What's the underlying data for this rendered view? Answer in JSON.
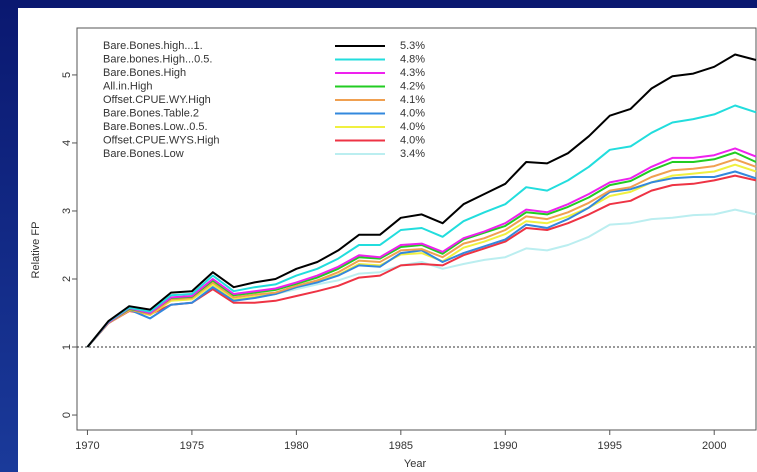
{
  "chart_data": {
    "type": "line",
    "x_label": "Year",
    "y_label": "Relative FP",
    "x": [
      1970,
      1971,
      1972,
      1973,
      1974,
      1975,
      1976,
      1977,
      1978,
      1979,
      1980,
      1981,
      1982,
      1983,
      1984,
      1985,
      1986,
      1987,
      1988,
      1989,
      1990,
      1991,
      1992,
      1993,
      1994,
      1995,
      1996,
      1997,
      1998,
      1999,
      2000,
      2001,
      2002
    ],
    "xlim": [
      1969.5,
      2002
    ],
    "xticks": [
      1970,
      1975,
      1980,
      1985,
      1990,
      1995,
      2000
    ],
    "ylim": [
      -0.22,
      5.69
    ],
    "yticks": [
      0,
      1,
      2,
      3,
      4,
      5
    ],
    "reference_line": 1,
    "series": [
      {
        "name": "Bare.Bones.high...1.",
        "legend_label": "5.3%",
        "color": "#000000",
        "values": [
          1.0,
          1.38,
          1.6,
          1.55,
          1.8,
          1.82,
          2.1,
          1.88,
          1.95,
          2.0,
          2.15,
          2.25,
          2.42,
          2.65,
          2.65,
          2.9,
          2.95,
          2.82,
          3.1,
          3.25,
          3.4,
          3.72,
          3.7,
          3.85,
          4.1,
          4.4,
          4.5,
          4.8,
          4.98,
          5.02,
          5.12,
          5.3,
          5.22
        ]
      },
      {
        "name": "Bare.bones.High...0.5.",
        "legend_label": "4.8%",
        "color": "#22dddd",
        "values": [
          1.0,
          1.37,
          1.58,
          1.52,
          1.76,
          1.78,
          2.05,
          1.82,
          1.88,
          1.92,
          2.05,
          2.15,
          2.3,
          2.5,
          2.5,
          2.72,
          2.75,
          2.62,
          2.85,
          2.98,
          3.1,
          3.35,
          3.3,
          3.45,
          3.65,
          3.9,
          3.95,
          4.15,
          4.3,
          4.35,
          4.42,
          4.55,
          4.45
        ]
      },
      {
        "name": "Bare.Bones.High",
        "legend_label": "4.3%",
        "color": "#ee22ee",
        "values": [
          1.0,
          1.36,
          1.57,
          1.5,
          1.73,
          1.75,
          2.0,
          1.78,
          1.82,
          1.86,
          1.95,
          2.05,
          2.18,
          2.35,
          2.32,
          2.5,
          2.52,
          2.4,
          2.6,
          2.7,
          2.82,
          3.02,
          2.98,
          3.1,
          3.25,
          3.42,
          3.48,
          3.65,
          3.78,
          3.78,
          3.82,
          3.92,
          3.8
        ]
      },
      {
        "name": "All.in.High",
        "legend_label": "4.2%",
        "color": "#22cc22",
        "values": [
          1.0,
          1.36,
          1.56,
          1.5,
          1.72,
          1.74,
          1.98,
          1.76,
          1.8,
          1.84,
          1.93,
          2.02,
          2.15,
          2.32,
          2.3,
          2.47,
          2.5,
          2.37,
          2.58,
          2.68,
          2.78,
          2.98,
          2.95,
          3.06,
          3.2,
          3.38,
          3.44,
          3.6,
          3.72,
          3.72,
          3.76,
          3.86,
          3.72
        ]
      },
      {
        "name": "Offset.CPUE.WY.High",
        "legend_label": "4.1%",
        "color": "#f0a050",
        "values": [
          1.0,
          1.35,
          1.55,
          1.48,
          1.7,
          1.72,
          1.95,
          1.73,
          1.77,
          1.8,
          1.9,
          1.98,
          2.1,
          2.27,
          2.25,
          2.42,
          2.44,
          2.32,
          2.52,
          2.6,
          2.72,
          2.92,
          2.88,
          2.98,
          3.12,
          3.3,
          3.35,
          3.5,
          3.6,
          3.62,
          3.66,
          3.76,
          3.65
        ]
      },
      {
        "name": "Bare.Bones.Table.2",
        "legend_label": "4.0%",
        "color": "#3388dd",
        "values": [
          1.0,
          1.35,
          1.55,
          1.42,
          1.62,
          1.65,
          1.88,
          1.68,
          1.72,
          1.78,
          1.88,
          1.95,
          2.05,
          2.2,
          2.18,
          2.38,
          2.42,
          2.25,
          2.38,
          2.48,
          2.58,
          2.8,
          2.75,
          2.88,
          3.05,
          3.28,
          3.32,
          3.42,
          3.48,
          3.5,
          3.5,
          3.58,
          3.48
        ]
      },
      {
        "name": "Bare.Bones.Low..0.5.",
        "legend_label": "4.0%",
        "color": "#f0f040",
        "values": [
          1.0,
          1.35,
          1.54,
          1.47,
          1.68,
          1.7,
          1.92,
          1.7,
          1.74,
          1.78,
          1.88,
          1.96,
          2.06,
          2.22,
          2.2,
          2.36,
          2.38,
          2.26,
          2.46,
          2.55,
          2.66,
          2.85,
          2.82,
          2.92,
          3.05,
          3.22,
          3.28,
          3.42,
          3.52,
          3.55,
          3.58,
          3.68,
          3.58
        ]
      },
      {
        "name": "Offset.CPUE.WYS.High",
        "legend_label": "4.0%",
        "color": "#ee3344",
        "values": [
          1.0,
          1.35,
          1.53,
          1.48,
          1.62,
          1.65,
          1.85,
          1.65,
          1.65,
          1.68,
          1.75,
          1.82,
          1.9,
          2.02,
          2.05,
          2.2,
          2.22,
          2.2,
          2.35,
          2.45,
          2.55,
          2.75,
          2.72,
          2.82,
          2.95,
          3.1,
          3.15,
          3.3,
          3.38,
          3.4,
          3.45,
          3.52,
          3.45
        ]
      },
      {
        "name": "Bare.Bones.Low",
        "legend_label": "3.4%",
        "color": "#bbeef0",
        "values": [
          1.0,
          1.35,
          1.55,
          1.5,
          1.68,
          1.7,
          1.9,
          1.7,
          1.72,
          1.78,
          1.85,
          1.92,
          1.98,
          2.08,
          2.1,
          2.2,
          2.25,
          2.15,
          2.22,
          2.28,
          2.32,
          2.45,
          2.42,
          2.5,
          2.62,
          2.8,
          2.82,
          2.88,
          2.9,
          2.94,
          2.95,
          3.02,
          2.95
        ]
      }
    ]
  }
}
